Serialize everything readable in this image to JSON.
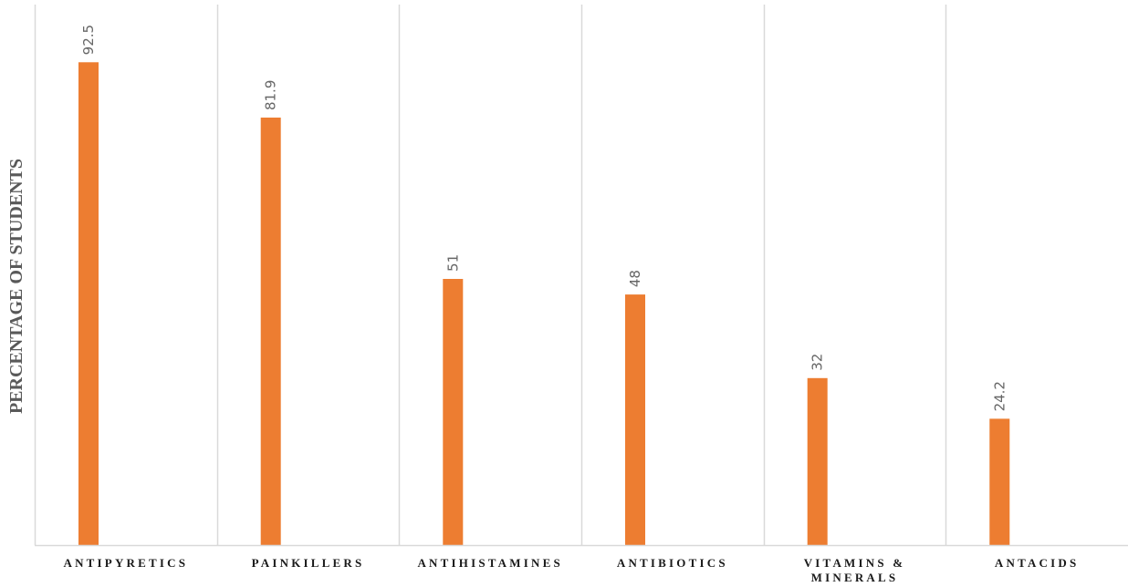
{
  "chart_data": {
    "type": "bar",
    "title": "",
    "xlabel": "",
    "ylabel": "PERCENTAGE OF STUDENTS",
    "categories": [
      [
        "ANTIPYRETICS"
      ],
      [
        "PAINKILLERS"
      ],
      [
        "ANTIHISTAMINES"
      ],
      [
        "ANTIBIOTICS"
      ],
      [
        "VITAMINS &",
        "MINERALS"
      ],
      [
        "ANTACIDS"
      ]
    ],
    "values": [
      92.5,
      81.9,
      51,
      48,
      32,
      24.2
    ],
    "value_labels": [
      "92.5",
      "81.9",
      "51",
      "48",
      "32",
      "24.2"
    ],
    "ylim": [
      0,
      100
    ],
    "grid": "vertical category separators",
    "bar_color": "#ED7D31",
    "gridline_color": "#D9D9D9"
  }
}
